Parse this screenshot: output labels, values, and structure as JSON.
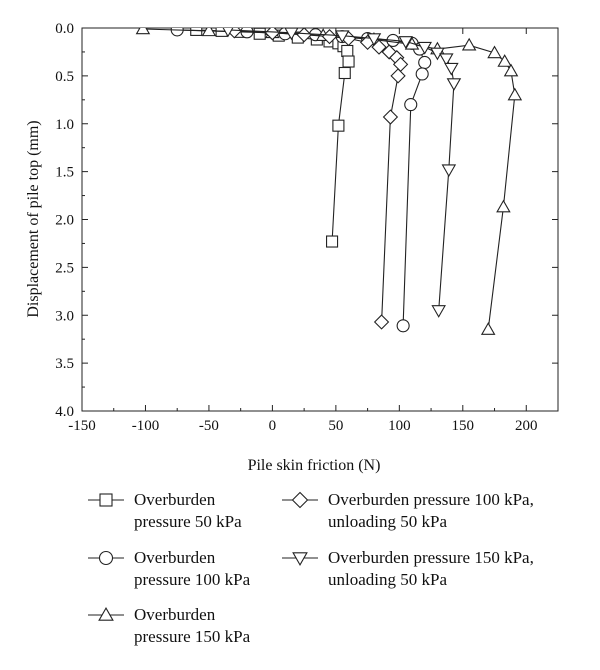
{
  "chart_data": {
    "type": "scatter",
    "xlabel": "Pile skin friction (N)",
    "ylabel": "Displacement of pile top (mm)",
    "xlim": [
      -150,
      225
    ],
    "ylim": [
      0,
      4.0
    ],
    "y_inverted": true,
    "x_ticks": [
      -150,
      -100,
      -50,
      0,
      50,
      100,
      150,
      200
    ],
    "x_tick_labels": [
      "-150",
      "-100",
      "-50",
      "0",
      "50",
      "100",
      "150",
      "200"
    ],
    "y_ticks": [
      0,
      0.5,
      1.0,
      1.5,
      2.0,
      2.5,
      3.0,
      3.5,
      4.0
    ],
    "y_tick_labels": [
      "0.0",
      "0.5",
      "1.0",
      "1.5",
      "2.0",
      "2.5",
      "3.0",
      "3.5",
      "4.0"
    ],
    "grid": false,
    "legend_position": "below",
    "series": [
      {
        "name": "Overburden pressure 50 kPa",
        "legend_lines": [
          "Overburden",
          "pressure 50 kPa"
        ],
        "marker": "square",
        "points": [
          [
            -60,
            0.02
          ],
          [
            -40,
            0.03
          ],
          [
            -25,
            0.04
          ],
          [
            -10,
            0.06
          ],
          [
            5,
            0.08
          ],
          [
            20,
            0.1
          ],
          [
            35,
            0.12
          ],
          [
            45,
            0.14
          ],
          [
            52,
            0.16
          ],
          [
            56,
            0.19
          ],
          [
            59,
            0.24
          ],
          [
            60,
            0.35
          ],
          [
            57,
            0.47
          ],
          [
            52,
            1.02
          ],
          [
            47,
            2.23
          ]
        ]
      },
      {
        "name": "Overburden pressure 100 kPa",
        "legend_lines": [
          "Overburden",
          "pressure 100 kPa"
        ],
        "marker": "circle",
        "points": [
          [
            -75,
            0.02
          ],
          [
            -20,
            0.04
          ],
          [
            10,
            0.06
          ],
          [
            34,
            0.07
          ],
          [
            55,
            0.09
          ],
          [
            75,
            0.11
          ],
          [
            95,
            0.13
          ],
          [
            110,
            0.16
          ],
          [
            116,
            0.22
          ],
          [
            120,
            0.36
          ],
          [
            118,
            0.48
          ],
          [
            109,
            0.8
          ],
          [
            103,
            3.11
          ]
        ]
      },
      {
        "name": "Overburden pressure 150 kPa",
        "legend_lines": [
          "Overburden",
          "pressure 150 kPa"
        ],
        "marker": "triangle-up",
        "points": [
          [
            -102,
            0.01
          ],
          [
            -50,
            0.03
          ],
          [
            0,
            0.05
          ],
          [
            40,
            0.08
          ],
          [
            80,
            0.12
          ],
          [
            110,
            0.17
          ],
          [
            130,
            0.22
          ],
          [
            155,
            0.18
          ],
          [
            175,
            0.26
          ],
          [
            183,
            0.35
          ],
          [
            188,
            0.45
          ],
          [
            191,
            0.7
          ],
          [
            182,
            1.87
          ],
          [
            170,
            3.15
          ]
        ]
      },
      {
        "name": "Overburden pressure 100 kPa, unloading 50 kPa",
        "legend_lines": [
          "Overburden pressure 100 kPa,",
          "unloading 50 kPa"
        ],
        "marker": "diamond",
        "points": [
          [
            -30,
            0.03
          ],
          [
            0,
            0.05
          ],
          [
            25,
            0.07
          ],
          [
            45,
            0.09
          ],
          [
            60,
            0.11
          ],
          [
            75,
            0.15
          ],
          [
            84,
            0.2
          ],
          [
            92,
            0.25
          ],
          [
            98,
            0.31
          ],
          [
            101,
            0.38
          ],
          [
            99,
            0.5
          ],
          [
            93,
            0.93
          ],
          [
            86,
            3.07
          ]
        ]
      },
      {
        "name": "Overburden pressure 150 kPa, unloading 50 kPa",
        "legend_lines": [
          "Overburden pressure 150 kPa,",
          "unloading 50 kPa"
        ],
        "marker": "triangle-down",
        "points": [
          [
            -35,
            0.02
          ],
          [
            15,
            0.05
          ],
          [
            55,
            0.08
          ],
          [
            80,
            0.11
          ],
          [
            105,
            0.14
          ],
          [
            120,
            0.2
          ],
          [
            130,
            0.26
          ],
          [
            137,
            0.32
          ],
          [
            141,
            0.42
          ],
          [
            143,
            0.58
          ],
          [
            139,
            1.48
          ],
          [
            131,
            2.95
          ]
        ]
      }
    ]
  }
}
